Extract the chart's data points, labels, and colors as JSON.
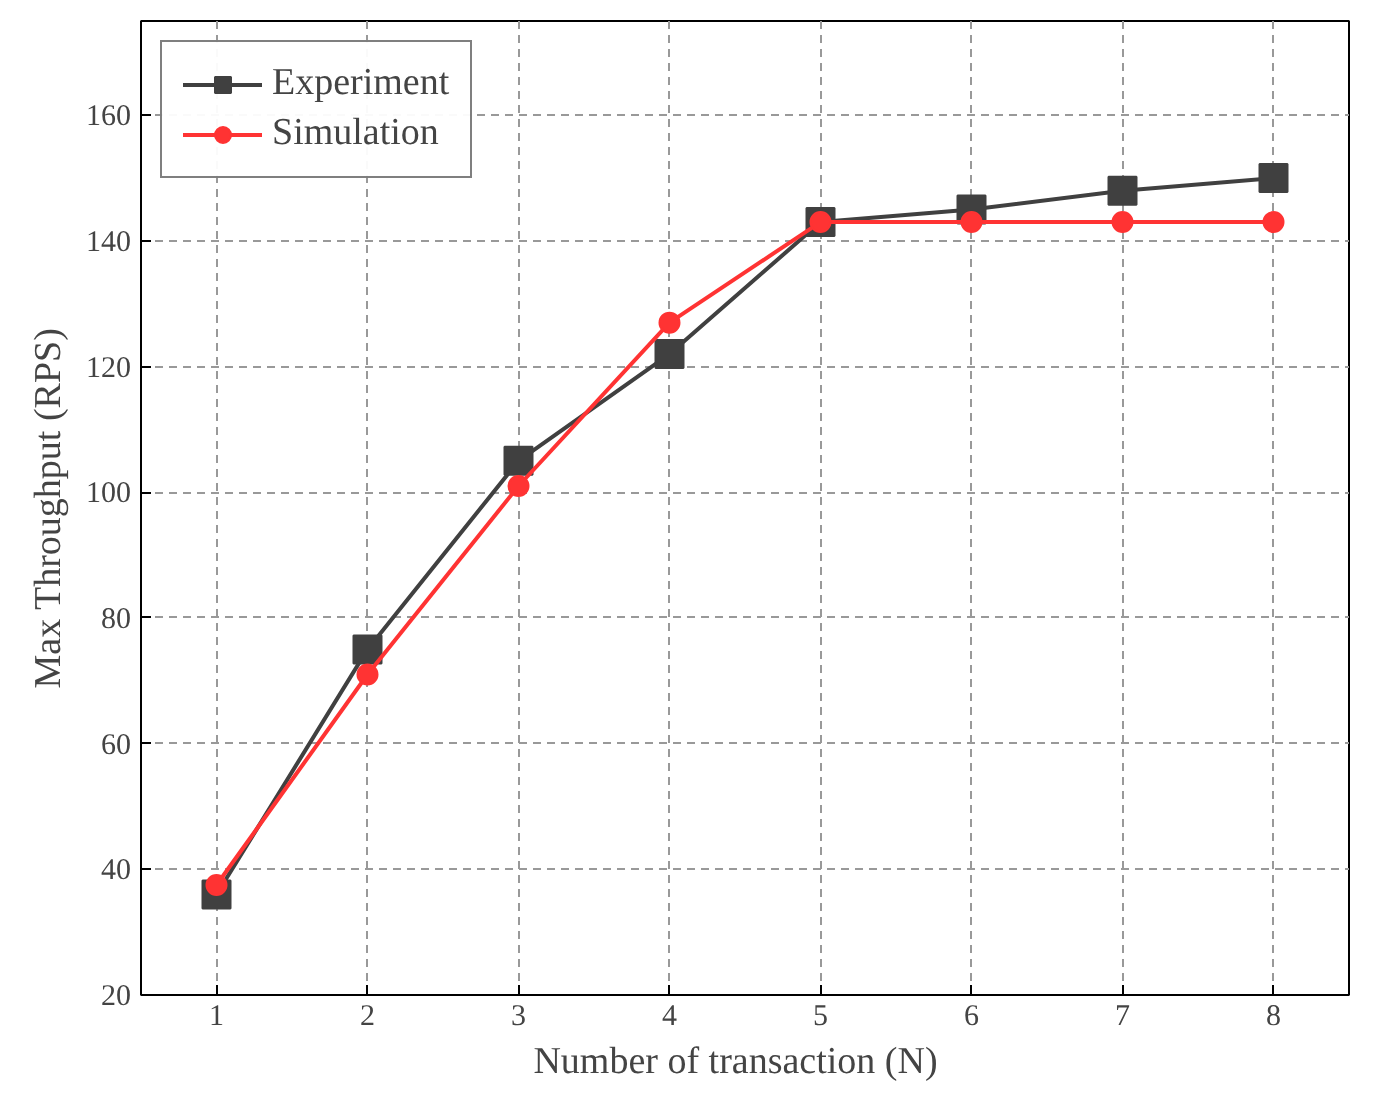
{
  "chart_data": {
    "type": "line",
    "xlabel": "Number of transaction   (N)",
    "ylabel": "Max Throughput (RPS)",
    "x": [
      1,
      2,
      3,
      4,
      5,
      6,
      7,
      8
    ],
    "series": [
      {
        "name": "Experiment",
        "color": "#404040",
        "marker": "square",
        "values": [
          36,
          75,
          105,
          122,
          143,
          145,
          148,
          150
        ]
      },
      {
        "name": "Simulation",
        "color": "#ff3333",
        "marker": "circle",
        "values": [
          37.5,
          71,
          101,
          127,
          143,
          143,
          143,
          143
        ]
      }
    ],
    "xlim": [
      0.5,
      8.5
    ],
    "xticks": [
      1,
      2,
      3,
      4,
      5,
      6,
      7,
      8
    ],
    "ylim": [
      20,
      175
    ],
    "yticks": [
      20,
      40,
      60,
      80,
      100,
      120,
      140,
      160
    ],
    "grid": true,
    "legend": "top left",
    "line_style": "solid"
  }
}
